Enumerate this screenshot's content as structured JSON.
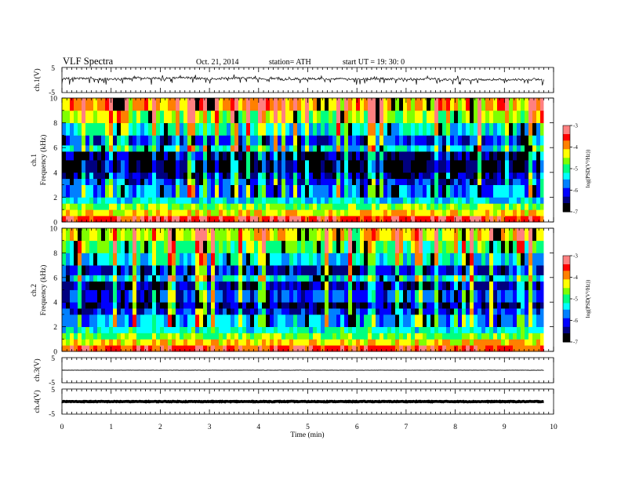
{
  "header": {
    "title": "VLF  Spectra",
    "date": "Oct. 21, 2014",
    "station": "station= ATH",
    "start": "start  UT =    19: 30: 0"
  },
  "chart_data": [
    {
      "type": "line",
      "panel": "ch1_waveform",
      "ylabel": "ch.1(V)",
      "ylim": [
        -5,
        5
      ],
      "yticks": [
        "5",
        "-5"
      ],
      "x": [
        0,
        0.5,
        1,
        1.5,
        2,
        2.5,
        3,
        3.5,
        4,
        4.5,
        5,
        5.5,
        6,
        6.5,
        7,
        7.5,
        8,
        8.5,
        9,
        9.5,
        9.8
      ],
      "y": [
        0.5,
        0.6,
        0.3,
        0.9,
        0.6,
        0.9,
        0.4,
        0.8,
        0.7,
        0.3,
        0.5,
        0.4,
        0.3,
        0.5,
        0.4,
        0.4,
        0.2,
        0.3,
        0.1,
        0.2,
        0.2
      ],
      "color": "#000000"
    },
    {
      "type": "heatmap",
      "panel": "ch1_spectrogram",
      "ylabel": "ch.1\nFrequency  (kHz)",
      "ylim": [
        0,
        10
      ],
      "yticks": [
        "10",
        "8",
        "6",
        "4",
        "2",
        "0"
      ],
      "colorbar": {
        "label": "log(PSD(V²/Hz))",
        "range": [
          -7,
          -3
        ],
        "ticks": [
          "-3",
          "-4",
          "-5",
          "-6",
          "-7"
        ]
      },
      "freq_bands_khz": [
        0,
        0.5,
        1,
        1.5,
        2,
        3,
        3.5,
        4,
        5,
        5.7,
        6.2,
        7,
        8,
        9,
        10
      ],
      "band_log_psd": [
        -3.4,
        -4.2,
        -4.7,
        -5.4,
        -5.8,
        -6.1,
        -6.5,
        -6.8,
        -6.6,
        -5.4,
        -6.0,
        -5.3,
        -4.6,
        -4.1
      ]
    },
    {
      "type": "heatmap",
      "panel": "ch2_spectrogram",
      "ylabel": "ch.2\nFrequency  (kHz)",
      "ylim": [
        0,
        10
      ],
      "yticks": [
        "10",
        "8",
        "6",
        "4",
        "2",
        "0"
      ],
      "colorbar": {
        "label": "log(PSD(V²/Hz))",
        "range": [
          -7,
          -3
        ],
        "ticks": [
          "-3",
          "-4",
          "-5",
          "-6",
          "-7"
        ]
      },
      "freq_bands_khz": [
        0,
        0.5,
        1,
        1.5,
        2,
        3,
        3.5,
        4,
        5,
        5.7,
        6.2,
        7,
        8,
        9,
        10
      ],
      "band_log_psd": [
        -3.6,
        -4.2,
        -4.7,
        -5.2,
        -5.6,
        -6.1,
        -6.4,
        -6.0,
        -6.4,
        -5.4,
        -6.2,
        -5.4,
        -4.8,
        -4.4
      ]
    },
    {
      "type": "line",
      "panel": "ch3_waveform",
      "ylabel": "ch.3(V)",
      "ylim": [
        -5,
        5
      ],
      "yticks": [
        "5",
        "-5"
      ],
      "x": [
        0,
        9.8
      ],
      "y": [
        0.0,
        0.0
      ],
      "color": "#000000"
    },
    {
      "type": "line",
      "panel": "ch4_waveform",
      "ylabel": "ch.4(V)",
      "ylim": [
        -5,
        5
      ],
      "yticks": [
        "5",
        "-5"
      ],
      "x": [
        0,
        9.8
      ],
      "y": [
        0.0,
        0.0
      ],
      "color": "#000000"
    }
  ],
  "x_axis": {
    "label": "Time  (min)",
    "range": [
      0,
      10
    ],
    "ticks": [
      "0",
      "1",
      "2",
      "3",
      "4",
      "5",
      "6",
      "7",
      "8",
      "9",
      "10"
    ]
  },
  "colormap": [
    "#000000",
    "#00007f",
    "#0000ff",
    "#0080ff",
    "#00ffff",
    "#00ff80",
    "#7fff00",
    "#ffff00",
    "#ff8000",
    "#ff0000",
    "#ff8080",
    "#ffffff"
  ]
}
